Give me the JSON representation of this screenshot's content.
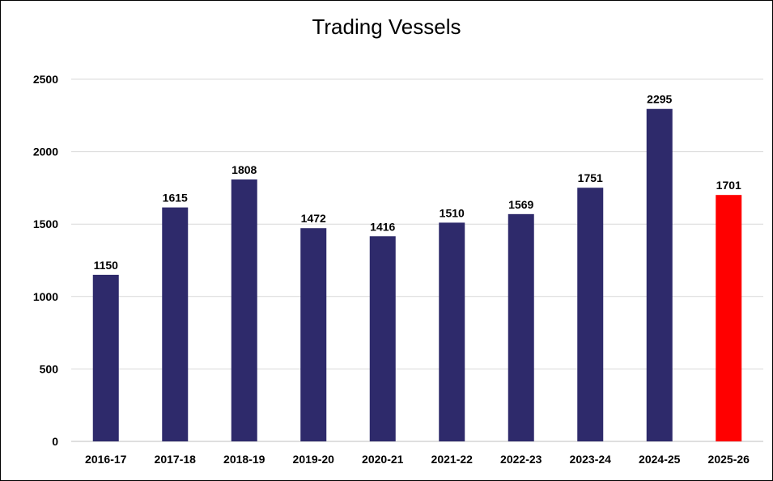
{
  "chart_data": {
    "type": "bar",
    "title": "Trading Vessels",
    "categories": [
      "2016-17",
      "2017-18",
      "2018-19",
      "2019-20",
      "2020-21",
      "2021-22",
      "2022-23",
      "2023-24",
      "2024-25",
      "2025-26"
    ],
    "values": [
      1150,
      1615,
      1808,
      1472,
      1416,
      1510,
      1569,
      1751,
      2295,
      1701
    ],
    "data_labels": [
      "1150",
      "1615",
      "1808",
      "1472",
      "1416",
      "1510",
      "1569",
      "1751",
      "2295",
      "1701"
    ],
    "yticks": [
      "0",
      "500",
      "1000",
      "1500",
      "2000",
      "2500"
    ],
    "ylim": [
      0,
      2500
    ],
    "grid": true,
    "legend": "none",
    "bar_color": "#2e2a6b",
    "highlight_color": "#ff0000",
    "highlight_index": 9
  }
}
